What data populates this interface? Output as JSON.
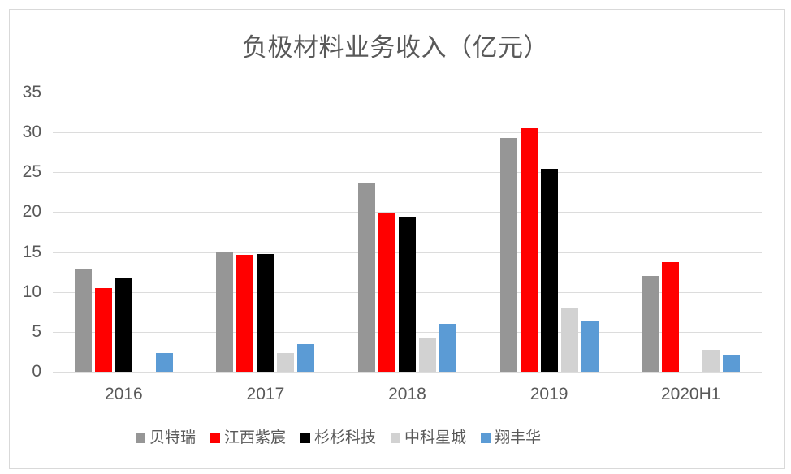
{
  "chart_data": {
    "type": "bar",
    "title": "负极材料业务收入（亿元）",
    "xlabel": "",
    "ylabel": "",
    "categories": [
      "2016",
      "2017",
      "2018",
      "2019",
      "2020H1"
    ],
    "series": [
      {
        "id": "beiterui",
        "name": "贝特瑞",
        "color": "#969696",
        "values": [
          12.9,
          15.1,
          23.6,
          29.3,
          12.0
        ]
      },
      {
        "id": "jiangxi-zichen",
        "name": "江西紫宸",
        "color": "#ff0000",
        "values": [
          10.5,
          14.7,
          19.8,
          30.5,
          13.7
        ]
      },
      {
        "id": "shanshan-keji",
        "name": "杉杉科技",
        "color": "#000000",
        "values": [
          11.7,
          14.8,
          19.4,
          25.4,
          null
        ]
      },
      {
        "id": "zhongke-xingcheng",
        "name": "中科星城",
        "color": "#d2d2d2",
        "values": [
          null,
          2.3,
          4.2,
          7.9,
          2.7
        ]
      },
      {
        "id": "xiangfenghua",
        "name": "翔丰华",
        "color": "#5b9bd5",
        "values": [
          2.3,
          3.5,
          6.0,
          6.4,
          2.1
        ]
      }
    ],
    "ylim": [
      0,
      35
    ],
    "yticks": [
      0,
      5,
      10,
      15,
      20,
      25,
      30,
      35
    ],
    "grid": true,
    "legend_position": "bottom"
  },
  "colors": {
    "gridline": "#dcdcdc",
    "axis_text": "#595959",
    "title_text": "#595959",
    "frame_border": "#d9d9d9",
    "background": "#ffffff"
  }
}
